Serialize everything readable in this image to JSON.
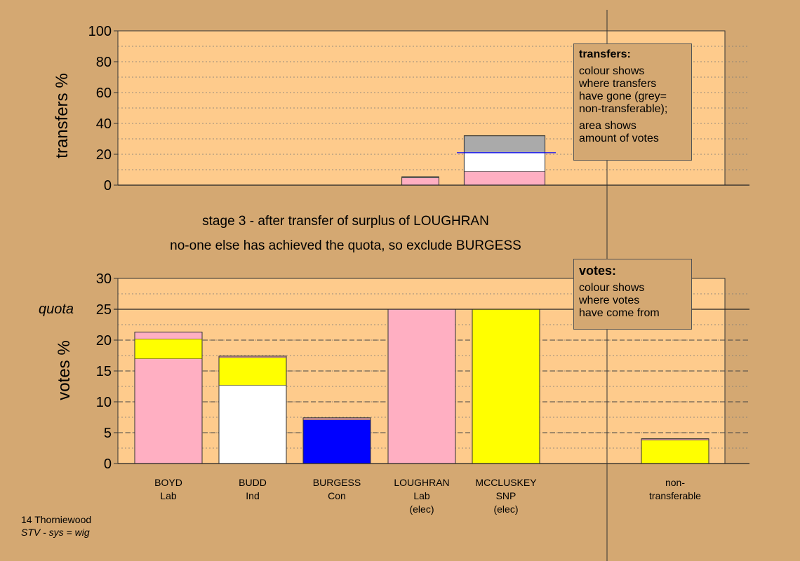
{
  "stage_text": "stage 3 - after transfer of surplus of LOUGHRAN",
  "exclude_text": "no-one else has achieved the quota, so exclude BURGESS",
  "transfers_legend": {
    "title": "transfers:",
    "line1": "colour shows",
    "line2": "where transfers",
    "line3": "have gone (grey=",
    "line4": "non-transferable);",
    "line5": "area shows",
    "line6": "amount of votes"
  },
  "votes_legend": {
    "title": "votes:",
    "line1": "colour shows",
    "line2": "where votes",
    "line3": "have come from"
  },
  "footer": {
    "ward": "14 Thorniewood",
    "system": "STV - sys = wig"
  },
  "colors": {
    "background": "#d4a872",
    "plot": "#fecb8c",
    "Lab": "#ffafc2",
    "SNP": "#ffff00",
    "Ind": "#ffffff",
    "Con": "#0000ff",
    "non-transferable": "#aaaaaa"
  },
  "candidates": [
    {
      "name": "BOYD",
      "party": "Lab",
      "note": ""
    },
    {
      "name": "BUDD",
      "party": "Ind",
      "note": ""
    },
    {
      "name": "BURGESS",
      "party": "Con",
      "note": ""
    },
    {
      "name": "LOUGHRAN",
      "party": "Lab",
      "note": "(elec)"
    },
    {
      "name": "MCCLUSKEY",
      "party": "SNP",
      "note": "(elec)"
    },
    {
      "name": "non-",
      "party": "transferable",
      "note": ""
    }
  ],
  "chart_data": [
    {
      "type": "bar",
      "ylabel": "transfers %",
      "ylim": [
        0,
        100
      ],
      "yticks": [
        "0",
        "20",
        "40",
        "60",
        "80",
        "100"
      ],
      "grid": true,
      "bars": [
        {
          "slot": 3,
          "width_pct": 4.4,
          "segments": [
            {
              "color": "Lab",
              "from": 0,
              "to": 4.8
            },
            {
              "color": "non-transferable",
              "from": 4.8,
              "to": 5.4
            }
          ]
        },
        {
          "slot": 4,
          "width_pct": 9.6,
          "segments": [
            {
              "color": "Lab",
              "from": 0,
              "to": 9
            },
            {
              "color": "Ind",
              "from": 9,
              "to": 21
            },
            {
              "color": "non-transferable",
              "from": 21,
              "to": 32
            }
          ]
        }
      ]
    },
    {
      "type": "bar",
      "ylabel": "votes %",
      "ylim": [
        0,
        30
      ],
      "yticks": [
        "0",
        "5",
        "10",
        "15",
        "20",
        "25",
        "30"
      ],
      "quota": 25,
      "quota_label": "quota",
      "grid": true,
      "bars": [
        {
          "slot": 0,
          "segments": [
            {
              "color": "Lab",
              "from": 0,
              "to": 17
            },
            {
              "color": "SNP",
              "from": 17,
              "to": 20.2
            },
            {
              "color": "Lab",
              "from": 20.2,
              "to": 21.3
            }
          ]
        },
        {
          "slot": 1,
          "segments": [
            {
              "color": "Ind",
              "from": 0,
              "to": 12.7
            },
            {
              "color": "SNP",
              "from": 12.7,
              "to": 17.2
            },
            {
              "color": "Lab",
              "from": 17.2,
              "to": 17.4
            }
          ]
        },
        {
          "slot": 2,
          "segments": [
            {
              "color": "Con",
              "from": 0,
              "to": 7.1
            },
            {
              "color": "Lab",
              "from": 7.1,
              "to": 7.4
            }
          ]
        },
        {
          "slot": 3,
          "segments": [
            {
              "color": "Lab",
              "from": 0,
              "to": 25
            }
          ]
        },
        {
          "slot": 4,
          "segments": [
            {
              "color": "SNP",
              "from": 0,
              "to": 25
            }
          ]
        },
        {
          "slot": 6,
          "segments": [
            {
              "color": "SNP",
              "from": 0,
              "to": 3.8
            },
            {
              "color": "Lab",
              "from": 3.8,
              "to": 4
            }
          ]
        }
      ]
    }
  ]
}
